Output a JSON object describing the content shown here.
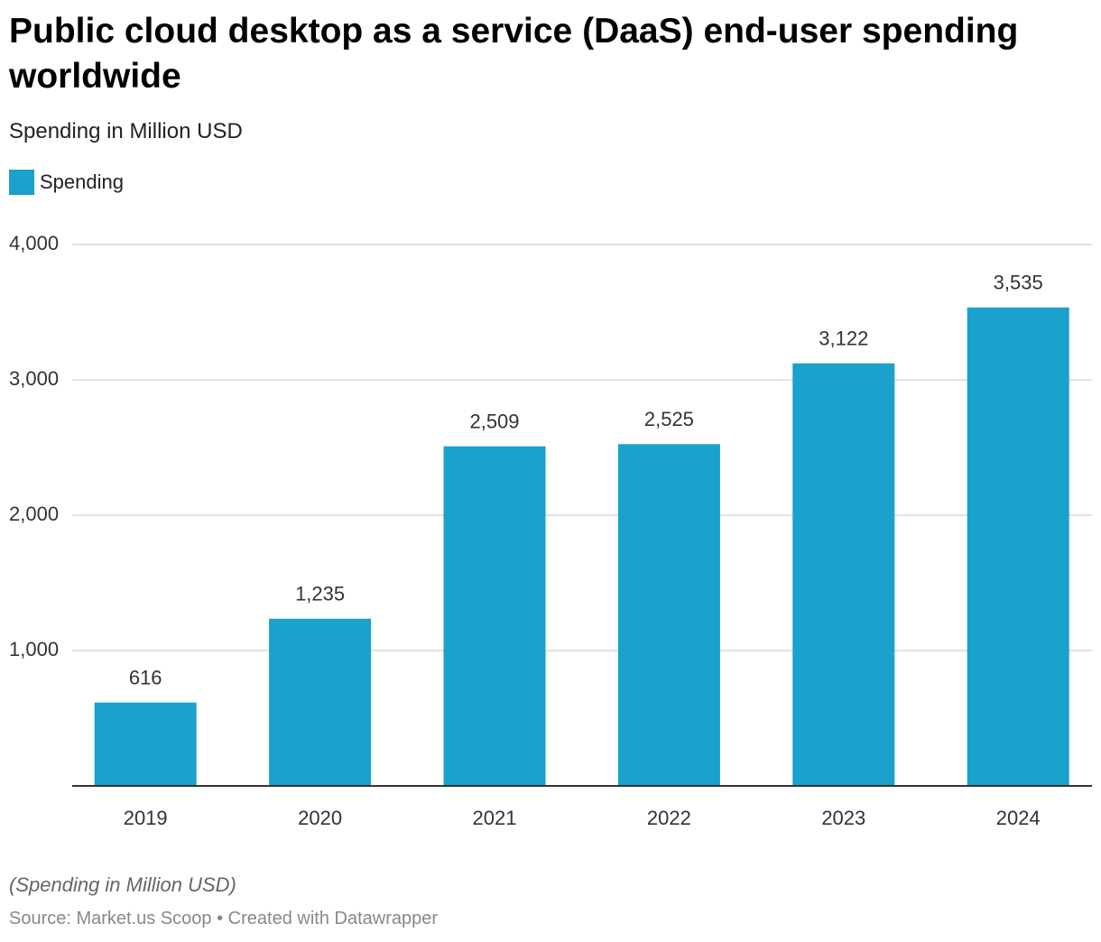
{
  "chart_data": {
    "type": "bar",
    "title": "Public cloud desktop as a service (DaaS) end-user spending worldwide",
    "subtitle": "Spending in Million USD",
    "categories": [
      "2019",
      "2020",
      "2021",
      "2022",
      "2023",
      "2024"
    ],
    "series": [
      {
        "name": "Spending",
        "color": "#1aa1cc",
        "values": [
          616,
          1235,
          2509,
          2525,
          3122,
          3535
        ],
        "value_labels": [
          "616",
          "1,235",
          "2,509",
          "2,525",
          "3,122",
          "3,535"
        ]
      }
    ],
    "ylim": [
      0,
      4000
    ],
    "yticks": [
      {
        "value": 1000,
        "label": "1,000"
      },
      {
        "value": 2000,
        "label": "2,000"
      },
      {
        "value": 3000,
        "label": "3,000"
      },
      {
        "value": 4000,
        "label": "4,000"
      }
    ],
    "grid": true,
    "note": "(Spending in Million USD)",
    "source": "Source: Market.us Scoop • Created with Datawrapper"
  }
}
